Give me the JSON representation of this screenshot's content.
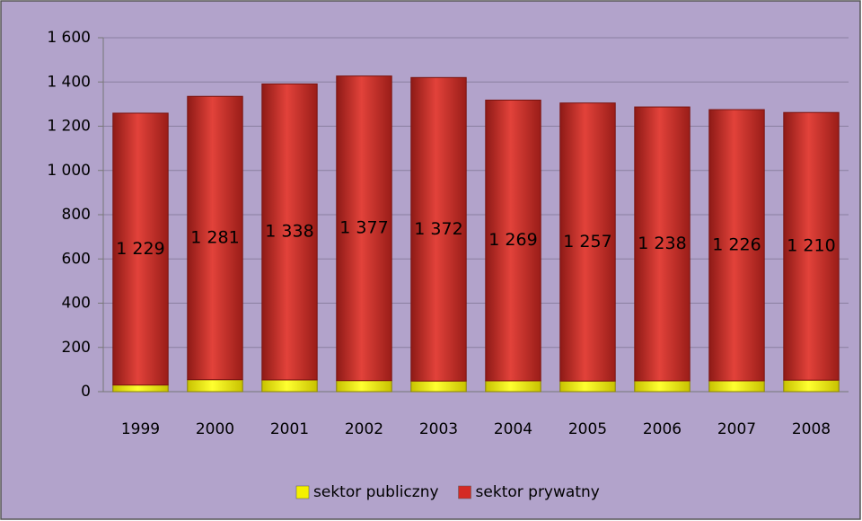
{
  "chart_data": {
    "type": "stacked_bar",
    "categories": [
      "1999",
      "2000",
      "2001",
      "2002",
      "2003",
      "2004",
      "2005",
      "2006",
      "2007",
      "2008"
    ],
    "series": [
      {
        "name": "sektor publiczny",
        "color": "#f5f000",
        "values": [
          30,
          54,
          53,
          50,
          48,
          49,
          48,
          49,
          49,
          52
        ]
      },
      {
        "name": "sektor prywatny",
        "color": "#d42a24",
        "values": [
          1229,
          1281,
          1338,
          1377,
          1372,
          1269,
          1257,
          1238,
          1226,
          1210
        ],
        "value_labels": [
          "1 229",
          "1 281",
          "1 338",
          "1 377",
          "1 372",
          "1 269",
          "1 257",
          "1 238",
          "1 226",
          "1 210"
        ]
      }
    ],
    "ylim": [
      0,
      1600
    ],
    "yticks": [
      0,
      200,
      400,
      600,
      800,
      {
        "value": 1000,
        "label": "1 000"
      },
      {
        "value": 1200,
        "label": "1 200"
      },
      {
        "value": 1400,
        "label": "1 400"
      },
      {
        "value": 1600,
        "label": "1 600"
      }
    ],
    "grid": true,
    "legend": "bottom"
  }
}
